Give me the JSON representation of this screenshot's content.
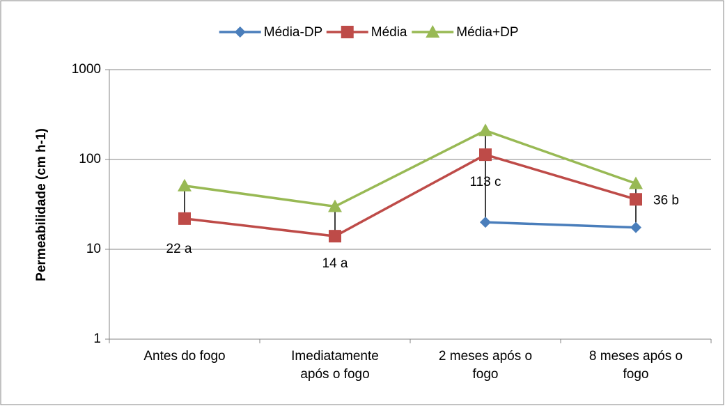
{
  "chart_data": {
    "type": "line",
    "y_label": "Permeabilidade (cm h-1)",
    "categories": [
      "Antes do fogo",
      "Imediatamente após o fogo",
      "2 meses após o fogo",
      "8 meses após o fogo"
    ],
    "series": [
      {
        "name": "Média-DP",
        "color": "#4a7ebb",
        "marker": "diamond",
        "values": [
          null,
          null,
          20,
          17.5
        ]
      },
      {
        "name": "Média",
        "color": "#be4b48",
        "marker": "square",
        "values": [
          22,
          14,
          113,
          36
        ],
        "value_labels": [
          "22 a",
          "14 a",
          "113 c",
          "36 b"
        ]
      },
      {
        "name": "Média+DP",
        "color": "#98b954",
        "marker": "triangle",
        "values": [
          51,
          30,
          210,
          54
        ]
      }
    ],
    "ylim": [
      1,
      1000
    ],
    "yticks": [
      1,
      10,
      100,
      1000
    ],
    "log_scale": true,
    "grid": true,
    "legend": "top"
  }
}
